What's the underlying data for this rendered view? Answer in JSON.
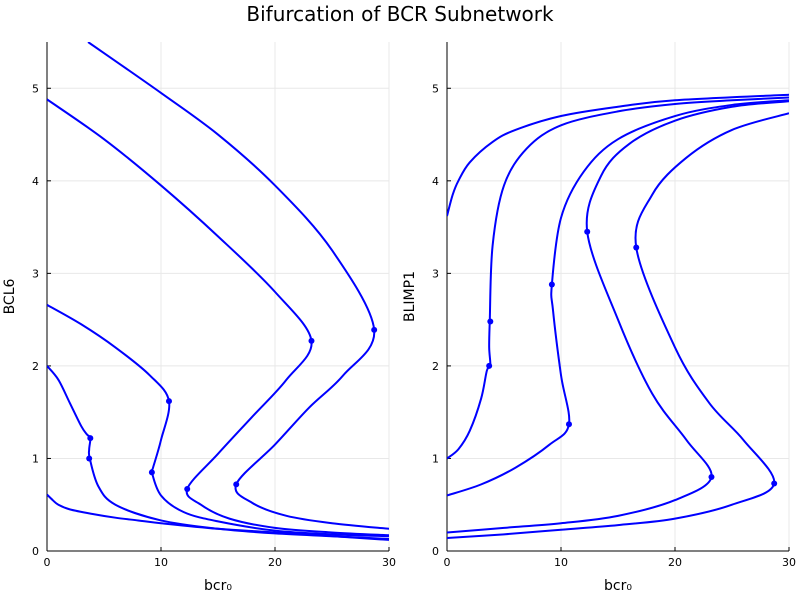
{
  "title": "Bifurcation of BCR Subnetwork",
  "colors": {
    "curve": "#0000ff",
    "grid": "#e8e8e8",
    "axis": "#000000"
  },
  "chart_data": [
    {
      "type": "line",
      "xlabel": "bcr₀",
      "ylabel": "BCL6",
      "xlim": [
        0,
        30
      ],
      "ylim": [
        0,
        5.5
      ],
      "xticks": [
        "0",
        "10",
        "20",
        "30"
      ],
      "yticks": [
        "0",
        "1",
        "2",
        "3",
        "4",
        "5"
      ],
      "grid": true,
      "legend": "none",
      "series": [
        {
          "x": [
            0,
            1,
            2,
            3,
            3.5,
            3.8,
            3.7,
            3.75,
            4.5,
            6,
            10,
            15,
            20,
            25,
            30
          ],
          "y": [
            2.0,
            1.85,
            1.6,
            1.35,
            1.26,
            1.22,
            1.1,
            1.0,
            0.7,
            0.5,
            0.33,
            0.24,
            0.19,
            0.16,
            0.13
          ]
        },
        {
          "x": [
            0,
            3,
            6,
            9,
            10.7,
            10,
            9.3,
            9.2,
            10,
            12,
            15,
            20,
            25,
            30
          ],
          "y": [
            2.66,
            2.45,
            2.2,
            1.9,
            1.62,
            1.2,
            0.9,
            0.85,
            0.6,
            0.42,
            0.32,
            0.22,
            0.18,
            0.16
          ]
        },
        {
          "x": [
            0,
            5,
            10,
            15,
            20,
            23.2,
            21,
            18,
            15,
            12.3,
            13.5,
            16,
            20,
            25,
            30
          ],
          "y": [
            4.88,
            4.45,
            3.95,
            3.4,
            2.8,
            2.27,
            1.85,
            1.45,
            1.05,
            0.67,
            0.5,
            0.35,
            0.25,
            0.2,
            0.17
          ]
        },
        {
          "x": [
            0,
            0.5,
            1,
            2,
            4,
            6,
            8,
            10,
            15,
            20,
            30
          ],
          "y": [
            0.61,
            0.55,
            0.5,
            0.45,
            0.4,
            0.36,
            0.33,
            0.3,
            0.24,
            0.2,
            0.12
          ]
        },
        {
          "x": [
            3.6,
            10,
            15,
            20,
            25,
            28.7,
            26,
            23,
            20,
            16.6,
            18,
            21,
            25,
            30
          ],
          "y": [
            5.5,
            4.95,
            4.5,
            3.95,
            3.25,
            2.39,
            1.9,
            1.55,
            1.15,
            0.72,
            0.52,
            0.38,
            0.3,
            0.24
          ]
        }
      ],
      "markers": [
        {
          "x": 3.7,
          "y": 1.0
        },
        {
          "x": 3.8,
          "y": 1.22
        },
        {
          "x": 9.2,
          "y": 0.85
        },
        {
          "x": 10.7,
          "y": 1.62
        },
        {
          "x": 12.3,
          "y": 0.67
        },
        {
          "x": 23.2,
          "y": 2.27
        },
        {
          "x": 16.6,
          "y": 0.72
        },
        {
          "x": 28.7,
          "y": 2.39
        }
      ]
    },
    {
      "type": "line",
      "xlabel": "bcr₀",
      "ylabel": "BLIMP1",
      "xlim": [
        0,
        30
      ],
      "ylim": [
        0,
        5.5
      ],
      "xticks": [
        "0",
        "10",
        "20",
        "30"
      ],
      "yticks": [
        "0",
        "1",
        "2",
        "3",
        "4",
        "5"
      ],
      "grid": true,
      "legend": "none",
      "series": [
        {
          "x": [
            0,
            1,
            2,
            3,
            3.5,
            3.8,
            3.7,
            3.75,
            4,
            5,
            7,
            10,
            15,
            20,
            25,
            30
          ],
          "y": [
            1.0,
            1.1,
            1.3,
            1.65,
            1.95,
            2.0,
            2.2,
            2.48,
            3.3,
            3.95,
            4.35,
            4.6,
            4.75,
            4.83,
            4.87,
            4.9
          ]
        },
        {
          "x": [
            0,
            3,
            6,
            9,
            10.7,
            10,
            9.3,
            9.2,
            10,
            12,
            15,
            20,
            25,
            30
          ],
          "y": [
            0.6,
            0.72,
            0.9,
            1.15,
            1.37,
            1.9,
            2.6,
            2.88,
            3.6,
            4.1,
            4.45,
            4.7,
            4.82,
            4.87
          ]
        },
        {
          "x": [
            0,
            5,
            10,
            15,
            20,
            23.2,
            21,
            18,
            15,
            12.3,
            13.5,
            16,
            20,
            25,
            30
          ],
          "y": [
            0.2,
            0.25,
            0.3,
            0.38,
            0.55,
            0.8,
            1.2,
            1.7,
            2.5,
            3.45,
            4.05,
            4.4,
            4.65,
            4.8,
            4.86
          ]
        },
        {
          "x": [
            0,
            0.5,
            1,
            2,
            4,
            6,
            10,
            15,
            20,
            30
          ],
          "y": [
            3.62,
            3.85,
            4.0,
            4.2,
            4.42,
            4.55,
            4.7,
            4.8,
            4.87,
            4.93
          ]
        },
        {
          "x": [
            0,
            5,
            10,
            15,
            20,
            25,
            28.7,
            26,
            23,
            20,
            16.6,
            18,
            21,
            25,
            30
          ],
          "y": [
            0.14,
            0.18,
            0.23,
            0.28,
            0.35,
            0.5,
            0.73,
            1.2,
            1.6,
            2.2,
            3.28,
            3.85,
            4.25,
            4.55,
            4.73
          ]
        }
      ],
      "markers": [
        {
          "x": 3.7,
          "y": 2.0
        },
        {
          "x": 3.8,
          "y": 2.48
        },
        {
          "x": 9.2,
          "y": 2.88
        },
        {
          "x": 10.7,
          "y": 1.37
        },
        {
          "x": 12.3,
          "y": 3.45
        },
        {
          "x": 23.2,
          "y": 0.8
        },
        {
          "x": 16.6,
          "y": 3.28
        },
        {
          "x": 28.7,
          "y": 0.73
        }
      ]
    }
  ]
}
